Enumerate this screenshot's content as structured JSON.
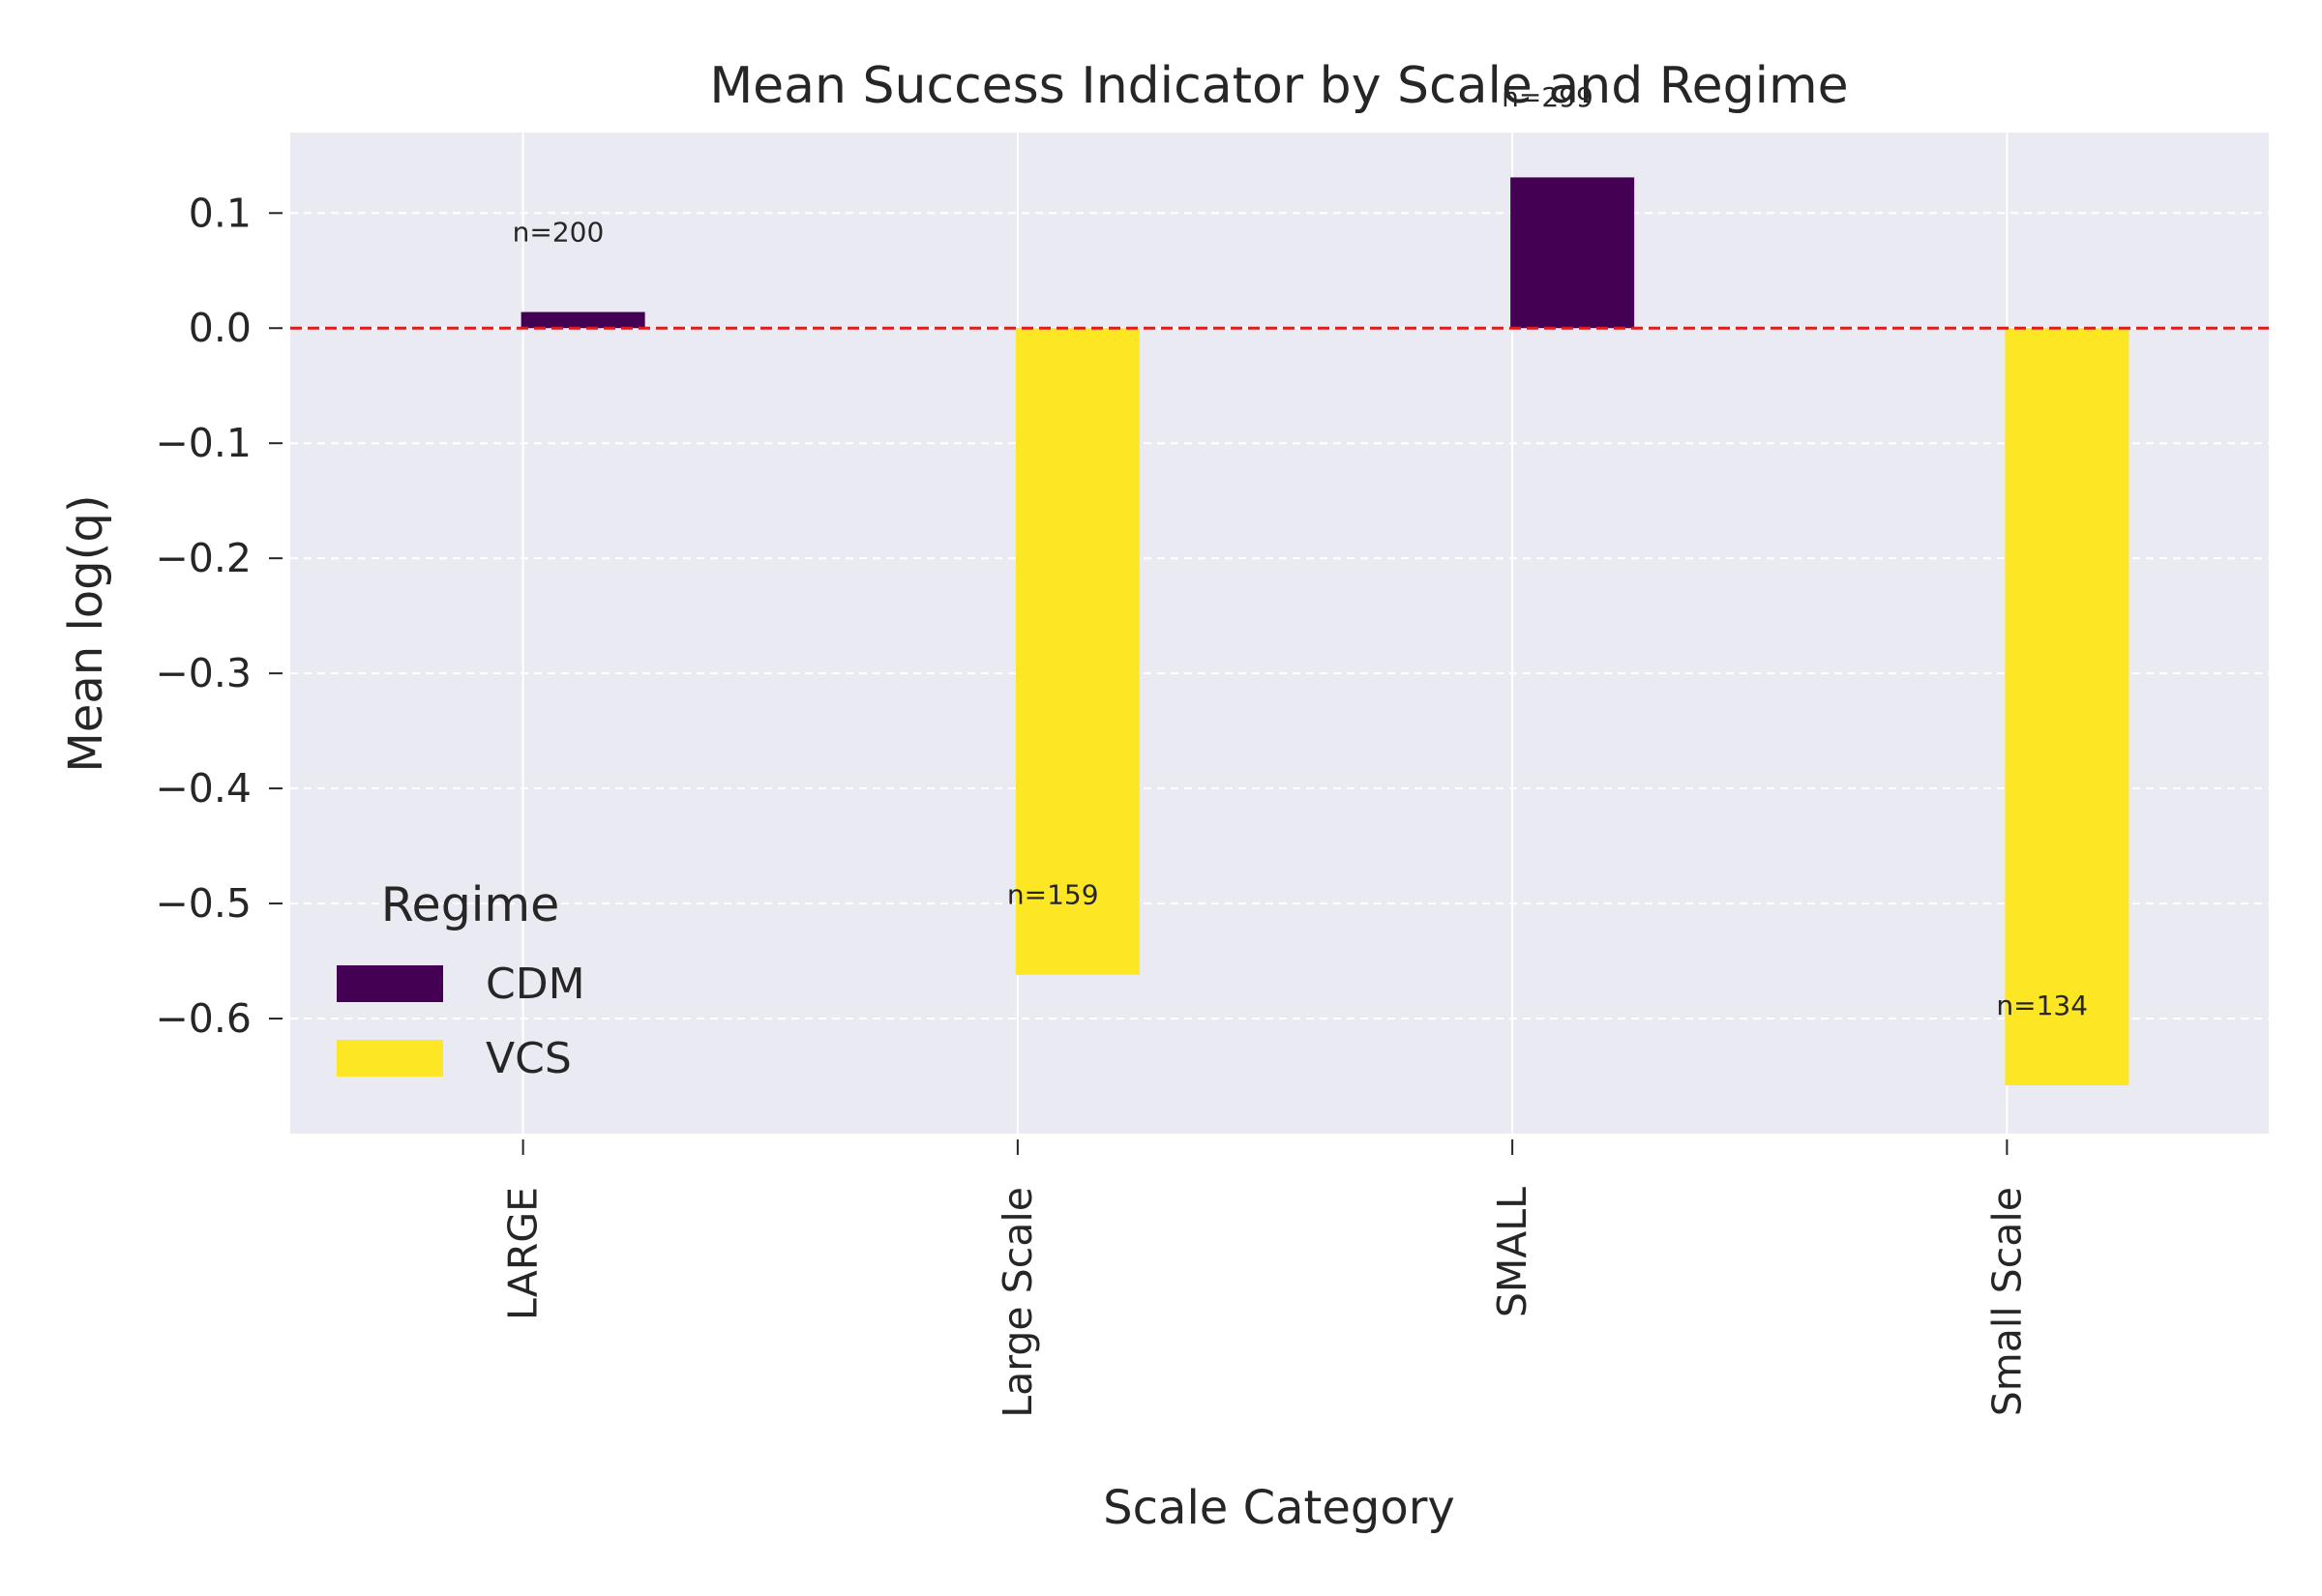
{
  "chart_data": {
    "type": "bar",
    "title": "Mean Success Indicator by Scale and Regime",
    "xlabel": "Scale Category",
    "ylabel": "Mean log(q)",
    "categories": [
      "LARGE",
      "Large Scale",
      "SMALL",
      "Small Scale"
    ],
    "series": [
      {
        "name": "CDM",
        "color": "#440154",
        "values": [
          0.014,
          null,
          0.131,
          null
        ]
      },
      {
        "name": "VCS",
        "color": "#fde725",
        "values": [
          null,
          -0.562,
          null,
          -0.658
        ]
      }
    ],
    "bar_labels": [
      "n=200",
      "n=159",
      "n=299",
      "n=134"
    ],
    "ylim": [
      -0.7,
      0.17
    ],
    "yticks": [
      0.1,
      0.0,
      -0.1,
      -0.2,
      -0.3,
      -0.4,
      -0.5,
      -0.6
    ],
    "ytick_labels": [
      "0.1",
      "0.0",
      "−0.1",
      "−0.2",
      "−0.3",
      "−0.4",
      "−0.5",
      "−0.6"
    ],
    "reference_line": {
      "y": 0,
      "color": "#e31a1c",
      "style": "dashed"
    },
    "grid": true,
    "background": "#eaeaf2",
    "legend": {
      "title": "Regime",
      "placement": "lower-left"
    }
  }
}
